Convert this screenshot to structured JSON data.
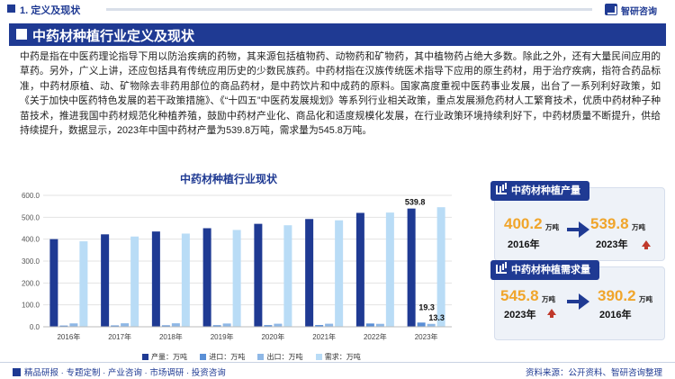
{
  "header": {
    "section_title": "1. 定义及现状",
    "logo_text": "智研咨询"
  },
  "banner": {
    "title": "中药材种植行业定义及现状"
  },
  "body_text": "中药是指在中医药理论指导下用以防治疾病的药物，其来源包括植物药、动物药和矿物药，其中植物药占绝大多数。除此之外，还有大量民间应用的草药。另外，广义上讲，还应包括具有传统应用历史的少数民族药。中药材指在汉族传统医术指导下应用的原生药材，用于治疗疾病，指符合药品标准，中药材原植、动、矿物除去非药用部位的商品药材，是中药饮片和中成药的原料。国家高度重视中医药事业发展，出台了一系列利好政策，如《关于加快中医药特色发展的若干政策措施》、《“十四五”中医药发展规划》等系列行业相关政策，重点发展濒危药材人工繁育技术，优质中药材种子种苗技术，推进我国中药材规范化种植养殖，鼓励中药材产业化、商品化和适度规模化发展，在行业政策环境持续利好下，中药材质量不断提升，供给持续提升，数据显示，2023年中国中药材产量为539.8万吨，需求量为545.8万吨。",
  "chart_data": {
    "type": "bar",
    "title": "中药材种植行业现状",
    "categories": [
      "2016年",
      "2017年",
      "2018年",
      "2019年",
      "2020年",
      "2021年",
      "2022年",
      "2023年"
    ],
    "ylim": [
      0,
      600
    ],
    "yticks": [
      "0.0",
      "100.0",
      "200.0",
      "300.0",
      "400.0",
      "500.0",
      "600.0"
    ],
    "grid": true,
    "legend_position": "bottom",
    "series": [
      {
        "name": "产量：万吨",
        "color": "#1f3a93",
        "values": [
          400.2,
          422.0,
          435.0,
          450.0,
          470.0,
          492.0,
          520.0,
          539.8
        ]
      },
      {
        "name": "进口：万吨",
        "color": "#5a8fd6",
        "values": [
          5.5,
          6.0,
          6.5,
          7.0,
          7.5,
          8.0,
          15.0,
          19.3
        ]
      },
      {
        "name": "出口：万吨",
        "color": "#8fb8e6",
        "values": [
          15.5,
          16.0,
          16.0,
          15.0,
          14.0,
          14.0,
          13.5,
          13.3
        ]
      },
      {
        "name": "需求：万吨",
        "color": "#b9dcf6",
        "values": [
          390.2,
          412.0,
          425.5,
          442.0,
          463.5,
          486.0,
          521.5,
          545.8
        ]
      }
    ],
    "data_labels": [
      {
        "series": 0,
        "index": 7,
        "text": "539.8"
      },
      {
        "series": 1,
        "index": 7,
        "text": "19.3"
      },
      {
        "series": 2,
        "index": 7,
        "text": "13.3"
      }
    ]
  },
  "cards": {
    "production": {
      "title": "中药材种植产量",
      "left_value": "400.2",
      "left_unit": "万吨",
      "left_year": "2016年",
      "right_value": "539.8",
      "right_unit": "万吨",
      "right_year": "2023年",
      "left_color": "#f0a52b",
      "right_color": "#f0a52b"
    },
    "demand": {
      "title": "中药材种植需求量",
      "left_value": "545.8",
      "left_unit": "万吨",
      "left_year": "2023年",
      "right_value": "390.2",
      "right_unit": "万吨",
      "right_year": "2016年",
      "left_color": "#f0a52b",
      "right_color": "#f0a52b"
    }
  },
  "footer": {
    "left_text": "精品研报 · 专题定制 · 产业咨询 · 市场调研 · 投资咨询",
    "right_text": "资料来源：公开资料、智研咨询整理"
  },
  "colors": {
    "brand_blue": "#1f3a93",
    "accent_orange": "#f0a52b",
    "up_red": "#c0392b"
  }
}
